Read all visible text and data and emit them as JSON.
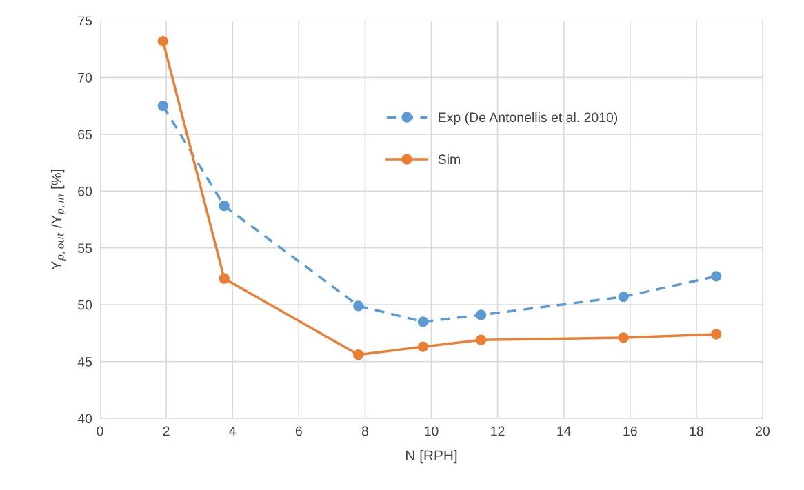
{
  "chart_data": {
    "type": "line",
    "xlabel": "N [RPH]",
    "ylabel": "Y$_{p,out}$ /Y$_{p,in}$ [%]",
    "x": [
      1.9,
      3.75,
      7.8,
      9.75,
      11.5,
      15.8,
      18.6
    ],
    "series": [
      {
        "name": "Exp (De Antonellis et al. 2010)",
        "color": "#5b9bd5",
        "line_style": "dashed",
        "values": [
          67.5,
          58.7,
          49.9,
          48.5,
          49.1,
          50.7,
          52.5
        ]
      },
      {
        "name": "Sim",
        "color": "#ed7d31",
        "line_style": "solid",
        "values": [
          73.2,
          52.3,
          45.6,
          46.3,
          46.9,
          47.1,
          47.4
        ]
      }
    ],
    "marker": "circle",
    "xlim": [
      0,
      20
    ],
    "xticks": [
      0,
      2,
      4,
      6,
      8,
      10,
      12,
      14,
      16,
      18,
      20
    ],
    "ylim": [
      40,
      75
    ],
    "yticks": [
      40,
      45,
      50,
      55,
      60,
      65,
      70,
      75
    ],
    "grid": true,
    "legend": "top right"
  }
}
